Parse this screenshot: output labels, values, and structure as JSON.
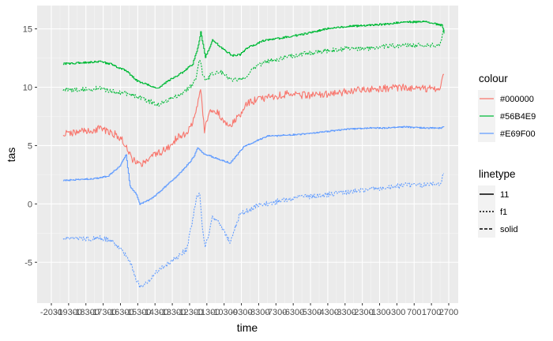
{
  "chart_data": {
    "type": "line",
    "xlabel": "time",
    "ylabel": "tas",
    "x_range": [
      0,
      1000
    ],
    "ylim": [
      -8.5,
      17
    ],
    "y_ticks": [
      -5,
      0,
      5,
      10,
      15
    ],
    "x_tick_labels": [
      "-2030",
      "-19300",
      "-18300",
      "-17300",
      "-16300",
      "-15300",
      "-14300",
      "-13300",
      "-12300",
      "-11300",
      "-10300",
      "-9300",
      "-8300",
      "-7300",
      "-6300",
      "-5300",
      "-4300",
      "-3300",
      "-2300",
      "-1300",
      "-300",
      "700",
      "1700",
      "2700"
    ],
    "grid": true,
    "legend_position": "right",
    "legends": [
      {
        "title": "colour",
        "entries": [
          {
            "label": "#000000",
            "color": "#F8766D"
          },
          {
            "label": "#56B4E9",
            "color": "#00BA38"
          },
          {
            "label": "#E69F00",
            "color": "#619CFF"
          }
        ]
      },
      {
        "title": "linetype",
        "entries": [
          {
            "label": "11",
            "dash": "none"
          },
          {
            "label": "f1",
            "dash": "2,2"
          },
          {
            "label": "solid",
            "dash": "4,2"
          }
        ]
      }
    ],
    "series": [
      {
        "color": "#00BA38",
        "linetype": "solid",
        "step": true,
        "noise": 0.08,
        "x": [
          30,
          80,
          120,
          150,
          190,
          220,
          270,
          300,
          335,
          360,
          372,
          380,
          392,
          410,
          460,
          480,
          500,
          540,
          600,
          650,
          700,
          750,
          800,
          850,
          900,
          950,
          980,
          995,
          1000
        ],
        "y": [
          12.0,
          12.1,
          12.2,
          12.0,
          11.4,
          10.5,
          9.9,
          10.6,
          11.3,
          12.0,
          13.3,
          14.7,
          12.6,
          14.0,
          12.7,
          12.8,
          13.4,
          14.0,
          14.3,
          14.6,
          15.0,
          15.2,
          15.3,
          15.4,
          15.6,
          15.6,
          15.4,
          15.3,
          14.6
        ]
      },
      {
        "color": "#00BA38",
        "linetype": "11",
        "step": false,
        "noise": 0.2,
        "x": [
          30,
          80,
          120,
          150,
          200,
          230,
          270,
          300,
          330,
          360,
          370,
          378,
          385,
          395,
          410,
          430,
          460,
          490,
          520,
          550,
          600,
          650,
          700,
          750,
          800,
          850,
          900,
          950,
          990,
          1000
        ],
        "y": [
          9.8,
          9.8,
          9.9,
          9.7,
          9.4,
          9.1,
          8.5,
          9.0,
          9.4,
          10.2,
          11.0,
          12.5,
          11.2,
          10.6,
          11.2,
          11.4,
          10.6,
          10.8,
          11.8,
          12.2,
          12.6,
          12.9,
          13.1,
          13.3,
          13.3,
          13.5,
          13.6,
          13.6,
          13.6,
          15.0
        ]
      },
      {
        "color": "#F8766D",
        "linetype": "solid",
        "step": false,
        "noise": 0.32,
        "x": [
          30,
          80,
          120,
          150,
          180,
          205,
          230,
          270,
          300,
          320,
          345,
          360,
          372,
          380,
          390,
          405,
          425,
          455,
          480,
          500,
          520,
          560,
          600,
          650,
          700,
          750,
          800,
          850,
          900,
          950,
          990,
          1000
        ],
        "y": [
          6.0,
          6.2,
          6.4,
          6.2,
          5.6,
          3.9,
          3.4,
          4.3,
          4.8,
          5.7,
          6.0,
          7.0,
          8.5,
          9.7,
          6.3,
          8.0,
          7.8,
          6.6,
          7.6,
          8.6,
          8.9,
          9.2,
          9.4,
          9.3,
          9.4,
          9.6,
          9.8,
          9.9,
          10.0,
          9.9,
          9.8,
          11.1
        ]
      },
      {
        "color": "#619CFF",
        "linetype": "solid",
        "step": true,
        "noise": 0.06,
        "x": [
          30,
          80,
          120,
          145,
          175,
          190,
          200,
          215,
          225,
          240,
          260,
          290,
          320,
          345,
          362,
          372,
          378,
          388,
          420,
          455,
          470,
          490,
          520,
          550,
          600,
          650,
          700,
          750,
          800,
          850,
          900,
          950,
          990,
          1000
        ],
        "y": [
          2.0,
          2.1,
          2.2,
          2.4,
          3.3,
          4.2,
          1.5,
          0.9,
          0.0,
          0.2,
          0.6,
          1.5,
          2.4,
          3.3,
          4.0,
          4.8,
          4.6,
          4.3,
          3.9,
          3.5,
          4.1,
          4.9,
          5.4,
          5.8,
          5.9,
          6.0,
          6.2,
          6.4,
          6.5,
          6.5,
          6.6,
          6.5,
          6.5,
          6.6
        ]
      },
      {
        "color": "#619CFF",
        "linetype": "11",
        "step": false,
        "noise": 0.22,
        "x": [
          30,
          80,
          120,
          150,
          180,
          200,
          215,
          225,
          240,
          270,
          310,
          345,
          360,
          370,
          378,
          385,
          392,
          410,
          425,
          455,
          480,
          500,
          520,
          560,
          600,
          650,
          700,
          750,
          800,
          850,
          900,
          950,
          990,
          1000
        ],
        "y": [
          -3.0,
          -3.0,
          -2.9,
          -3.1,
          -3.9,
          -4.9,
          -6.4,
          -7.0,
          -6.8,
          -5.8,
          -4.8,
          -3.9,
          -1.3,
          0.7,
          0.8,
          -2.0,
          -3.8,
          -1.2,
          -1.4,
          -3.3,
          -0.9,
          -0.6,
          -0.2,
          0.1,
          0.4,
          0.6,
          0.8,
          1.0,
          1.2,
          1.4,
          1.6,
          1.6,
          1.7,
          2.6
        ]
      }
    ]
  }
}
